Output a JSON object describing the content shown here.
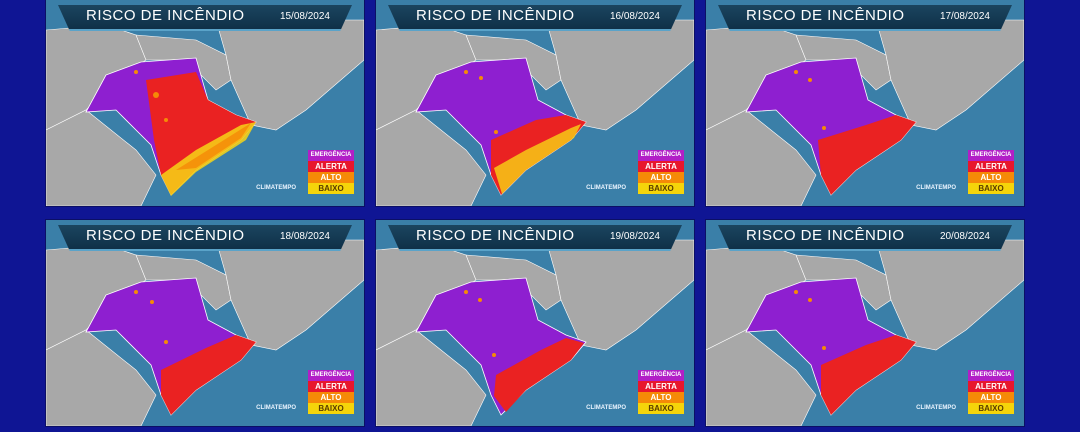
{
  "title": "RISCO DE INCÊNDIO",
  "legend": [
    "EMERGÊNCIA",
    "ALERTA",
    "ALTO",
    "BAIXO"
  ],
  "legend_colors": [
    "#b21fc7",
    "#e8162c",
    "#f58a07",
    "#f5d40a"
  ],
  "logo": "CLIMATEMPO",
  "panels": [
    {
      "title": "RISCO DE INCÊNDIO",
      "date": "15/08/2024"
    },
    {
      "title": "RISCO DE INCÊNDIO",
      "date": "16/08/2024"
    },
    {
      "title": "RISCO DE INCÊNDIO",
      "date": "17/08/2024"
    },
    {
      "title": "RISCO DE INCÊNDIO",
      "date": "18/08/2024"
    },
    {
      "title": "RISCO DE INCÊNDIO",
      "date": "19/08/2024"
    },
    {
      "title": "RISCO DE INCÊNDIO",
      "date": "20/08/2024"
    }
  ]
}
